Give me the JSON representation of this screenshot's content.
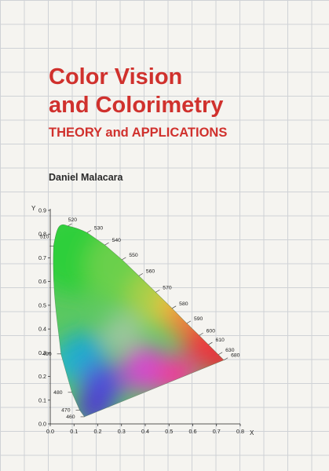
{
  "cover": {
    "title_line1": "Color Vision",
    "title_line2": "and Colorimetry",
    "subtitle": "THEORY and APPLICATIONS",
    "author": "Daniel Malacara",
    "title_color": "#d0312d"
  },
  "chart_data": {
    "type": "scatter",
    "xlabel": "X",
    "ylabel": "Y",
    "xlim": [
      0,
      0.8
    ],
    "ylim": [
      0,
      0.9
    ],
    "x_ticks": [
      "0.0",
      "0.1",
      "0.2",
      "0.3",
      "0.4",
      "0.5",
      "0.6",
      "0.7",
      "0.8"
    ],
    "y_ticks": [
      "0.0",
      "0.1",
      "0.2",
      "0.3",
      "0.4",
      "0.5",
      "0.6",
      "0.7",
      "0.8",
      "0.9"
    ],
    "wavelength_labels": [
      {
        "label": "460",
        "x": 0.144,
        "y": 0.03
      },
      {
        "label": "470",
        "x": 0.124,
        "y": 0.058
      },
      {
        "label": "480",
        "x": 0.091,
        "y": 0.133
      },
      {
        "label": "490",
        "x": 0.045,
        "y": 0.295
      },
      {
        "label": "510",
        "x": 0.014,
        "y": 0.75
      },
      {
        "label": "520",
        "x": 0.074,
        "y": 0.834
      },
      {
        "label": "530",
        "x": 0.155,
        "y": 0.806
      },
      {
        "label": "540",
        "x": 0.23,
        "y": 0.754
      },
      {
        "label": "550",
        "x": 0.302,
        "y": 0.692
      },
      {
        "label": "560",
        "x": 0.373,
        "y": 0.624
      },
      {
        "label": "570",
        "x": 0.444,
        "y": 0.555
      },
      {
        "label": "580",
        "x": 0.513,
        "y": 0.487
      },
      {
        "label": "590",
        "x": 0.575,
        "y": 0.424
      },
      {
        "label": "600",
        "x": 0.627,
        "y": 0.373
      },
      {
        "label": "610",
        "x": 0.666,
        "y": 0.334
      },
      {
        "label": "630",
        "x": 0.708,
        "y": 0.292
      },
      {
        "label": "680",
        "x": 0.731,
        "y": 0.269
      }
    ]
  }
}
